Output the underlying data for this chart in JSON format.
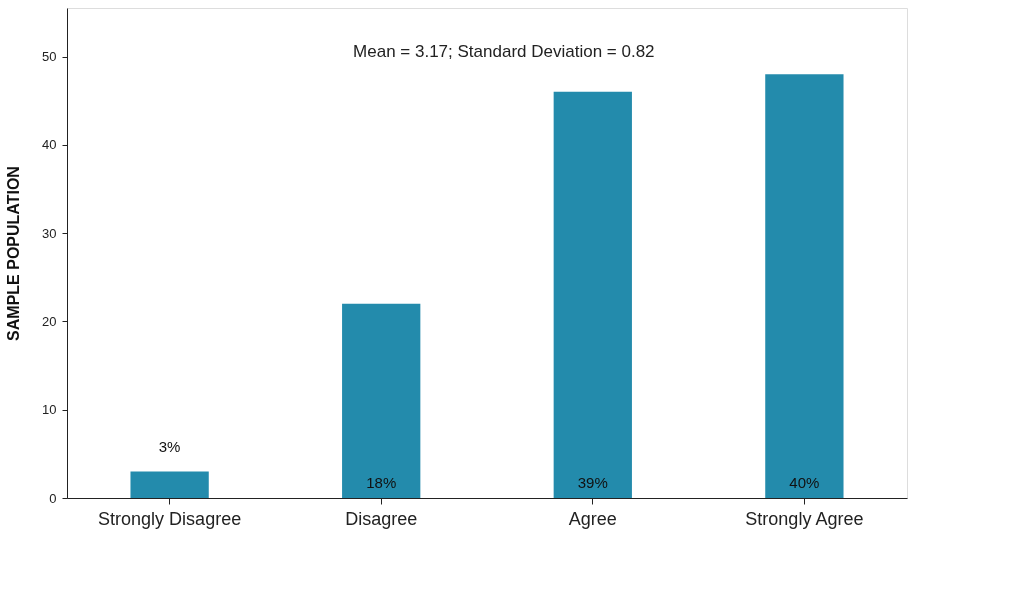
{
  "chart_data": {
    "type": "bar",
    "ylabel": "SAMPLE POPULATION",
    "categories": [
      "Strongly Disagree",
      "Disagree",
      "Agree",
      "Strongly Agree"
    ],
    "values": [
      3,
      22,
      46,
      48
    ],
    "color": "#238bac",
    "ylim": [
      0,
      55.5
    ],
    "yticks": [
      0,
      10,
      20,
      30,
      40,
      50
    ],
    "grid": false,
    "annotations": [
      "Mean = 3.17; Standard Deviation = 0.82",
      "3%",
      "18%",
      "39%",
      "40%"
    ]
  }
}
